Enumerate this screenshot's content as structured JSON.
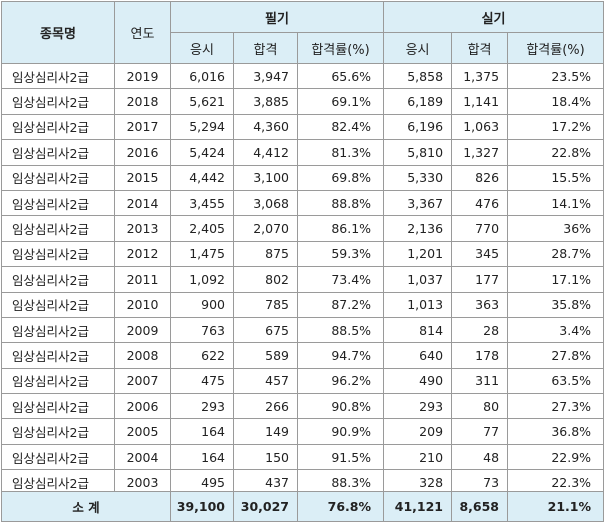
{
  "headers": {
    "item_name": "종목명",
    "year": "연도",
    "written": "필기",
    "practical": "실기",
    "applicants": "응시",
    "passed": "합격",
    "pass_rate": "합격률(%)"
  },
  "rows": [
    {
      "name": "임상심리사2급",
      "year": "2019",
      "w_app": "6,016",
      "w_pass": "3,947",
      "w_rate": "65.6%",
      "p_app": "5,858",
      "p_pass": "1,375",
      "p_rate": "23.5%"
    },
    {
      "name": "임상심리사2급",
      "year": "2018",
      "w_app": "5,621",
      "w_pass": "3,885",
      "w_rate": "69.1%",
      "p_app": "6,189",
      "p_pass": "1,141",
      "p_rate": "18.4%"
    },
    {
      "name": "임상심리사2급",
      "year": "2017",
      "w_app": "5,294",
      "w_pass": "4,360",
      "w_rate": "82.4%",
      "p_app": "6,196",
      "p_pass": "1,063",
      "p_rate": "17.2%"
    },
    {
      "name": "임상심리사2급",
      "year": "2016",
      "w_app": "5,424",
      "w_pass": "4,412",
      "w_rate": "81.3%",
      "p_app": "5,810",
      "p_pass": "1,327",
      "p_rate": "22.8%"
    },
    {
      "name": "임상심리사2급",
      "year": "2015",
      "w_app": "4,442",
      "w_pass": "3,100",
      "w_rate": "69.8%",
      "p_app": "5,330",
      "p_pass": "826",
      "p_rate": "15.5%"
    },
    {
      "name": "임상심리사2급",
      "year": "2014",
      "w_app": "3,455",
      "w_pass": "3,068",
      "w_rate": "88.8%",
      "p_app": "3,367",
      "p_pass": "476",
      "p_rate": "14.1%"
    },
    {
      "name": "임상심리사2급",
      "year": "2013",
      "w_app": "2,405",
      "w_pass": "2,070",
      "w_rate": "86.1%",
      "p_app": "2,136",
      "p_pass": "770",
      "p_rate": "36%"
    },
    {
      "name": "임상심리사2급",
      "year": "2012",
      "w_app": "1,475",
      "w_pass": "875",
      "w_rate": "59.3%",
      "p_app": "1,201",
      "p_pass": "345",
      "p_rate": "28.7%"
    },
    {
      "name": "임상심리사2급",
      "year": "2011",
      "w_app": "1,092",
      "w_pass": "802",
      "w_rate": "73.4%",
      "p_app": "1,037",
      "p_pass": "177",
      "p_rate": "17.1%"
    },
    {
      "name": "임상심리사2급",
      "year": "2010",
      "w_app": "900",
      "w_pass": "785",
      "w_rate": "87.2%",
      "p_app": "1,013",
      "p_pass": "363",
      "p_rate": "35.8%"
    },
    {
      "name": "임상심리사2급",
      "year": "2009",
      "w_app": "763",
      "w_pass": "675",
      "w_rate": "88.5%",
      "p_app": "814",
      "p_pass": "28",
      "p_rate": "3.4%"
    },
    {
      "name": "임상심리사2급",
      "year": "2008",
      "w_app": "622",
      "w_pass": "589",
      "w_rate": "94.7%",
      "p_app": "640",
      "p_pass": "178",
      "p_rate": "27.8%"
    },
    {
      "name": "임상심리사2급",
      "year": "2007",
      "w_app": "475",
      "w_pass": "457",
      "w_rate": "96.2%",
      "p_app": "490",
      "p_pass": "311",
      "p_rate": "63.5%"
    },
    {
      "name": "임상심리사2급",
      "year": "2006",
      "w_app": "293",
      "w_pass": "266",
      "w_rate": "90.8%",
      "p_app": "293",
      "p_pass": "80",
      "p_rate": "27.3%"
    },
    {
      "name": "임상심리사2급",
      "year": "2005",
      "w_app": "164",
      "w_pass": "149",
      "w_rate": "90.9%",
      "p_app": "209",
      "p_pass": "77",
      "p_rate": "36.8%"
    },
    {
      "name": "임상심리사2급",
      "year": "2004",
      "w_app": "164",
      "w_pass": "150",
      "w_rate": "91.5%",
      "p_app": "210",
      "p_pass": "48",
      "p_rate": "22.9%"
    },
    {
      "name": "임상심리사2급",
      "year": "2003",
      "w_app": "495",
      "w_pass": "437",
      "w_rate": "88.3%",
      "p_app": "328",
      "p_pass": "73",
      "p_rate": "22.3%"
    }
  ],
  "total": {
    "label": "소 계",
    "w_app": "39,100",
    "w_pass": "30,027",
    "w_rate": "76.8%",
    "p_app": "41,121",
    "p_pass": "8,658",
    "p_rate": "21.1%"
  },
  "colors": {
    "header_bg": "#dbeef6",
    "border": "#9a9a9a"
  }
}
